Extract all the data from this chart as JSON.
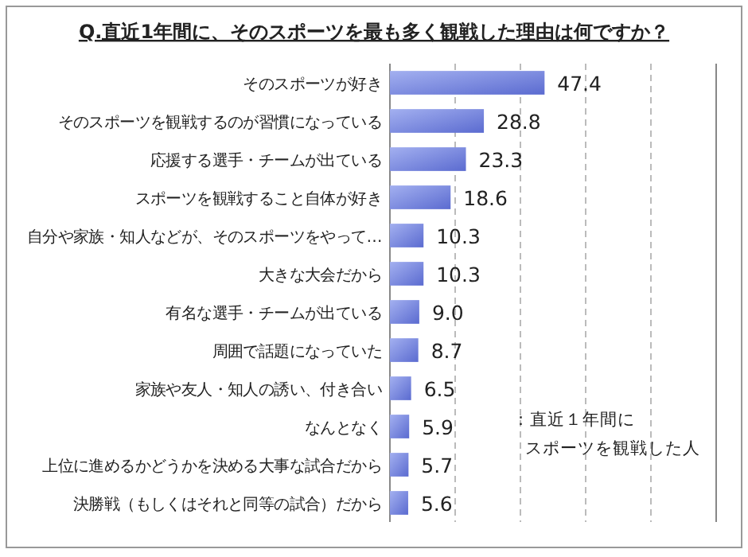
{
  "chart_data": {
    "type": "bar",
    "orientation": "horizontal",
    "title": "Q.直近1年間に、そのスポーツを最も多く観戦した理由は何ですか？",
    "categories": [
      "そのスポーツが好き",
      "そのスポーツを観戦するのが習慣になっている",
      "応援する選手・チームが出ている",
      "スポーツを観戦すること自体が好き",
      "自分や家族・知人などが、そのスポーツをやって…",
      "大きな大会だから",
      "有名な選手・チームが出ている",
      "周囲で話題になっていた",
      "家族や友人・知人の誘い、付き合い",
      "なんとなく",
      "上位に進めるかどうかを決める大事な試合だから",
      "決勝戦（もしくはそれと同等の試合）だから"
    ],
    "values": [
      47.4,
      28.8,
      23.3,
      18.6,
      10.3,
      10.3,
      9.0,
      8.7,
      6.5,
      5.9,
      5.7,
      5.6
    ],
    "color": "#5b6bd0",
    "data_labels": true,
    "value_labels": [
      "47.4",
      "28.8",
      "23.3",
      "18.6",
      "10.3",
      "10.3",
      "9.0",
      "8.7",
      "6.5",
      "5.9",
      "5.7",
      "5.6"
    ],
    "xlim": [
      0,
      100
    ],
    "xticks": [
      {
        "value": 20,
        "label": null
      },
      {
        "value": 40,
        "label": null
      },
      {
        "value": 60,
        "label": null
      },
      {
        "value": 80,
        "label": null
      }
    ],
    "grid": "x",
    "tick_labels": "y",
    "annotations": [
      "：直近１年間に",
      "スポーツを観戦した人"
    ]
  }
}
